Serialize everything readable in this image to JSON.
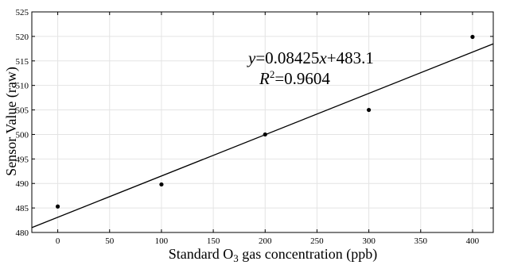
{
  "chart_data": {
    "type": "scatter",
    "xlabel_parts": [
      "Standard O",
      "3",
      " gas concentration (ppb)"
    ],
    "ylabel": "Sensor Value (raw)",
    "xlim": [
      -25,
      420
    ],
    "ylim": [
      480,
      525
    ],
    "xticks": [
      0,
      50,
      100,
      150,
      200,
      250,
      300,
      350,
      400
    ],
    "yticks": [
      480,
      485,
      490,
      495,
      500,
      505,
      510,
      515,
      520,
      525
    ],
    "grid": true,
    "points": [
      {
        "x": 0,
        "y": 485.3
      },
      {
        "x": 100,
        "y": 489.8
      },
      {
        "x": 200,
        "y": 500.0
      },
      {
        "x": 300,
        "y": 505.0
      },
      {
        "x": 400,
        "y": 519.9
      }
    ],
    "fit": {
      "slope": 0.08425,
      "intercept": 483.1,
      "equation_parts": [
        "y",
        "=0.08425",
        "x",
        "+483.1"
      ],
      "r2_parts": [
        "R",
        "2",
        "=0.9604"
      ]
    }
  }
}
